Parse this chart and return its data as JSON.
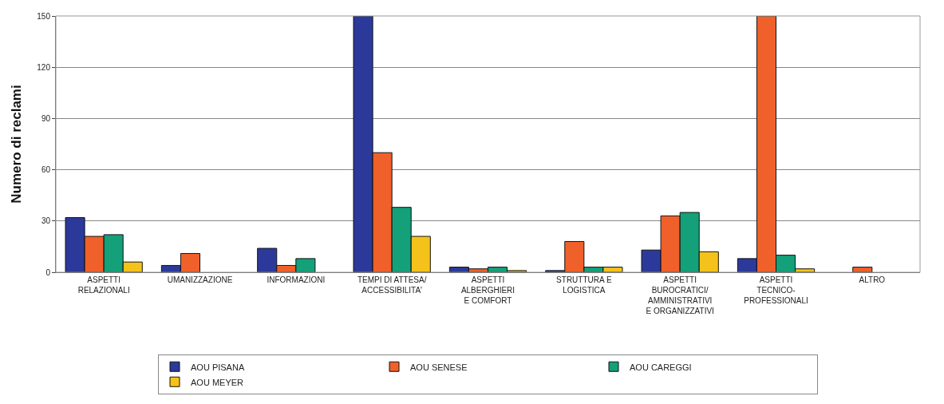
{
  "chart_data": {
    "type": "bar",
    "ylabel": "Numero di reclami",
    "categories": [
      "ASPETTI\nRELAZIONALI",
      "UMANIZZAZIONE",
      "INFORMAZIONI",
      "TEMPI DI ATTESA/\nACCESSIBILITA'",
      "ASPETTI\nALBERGHIERI\nE COMFORT",
      "STRUTTURA E\nLOGISTICA",
      "ASPETTI\nBUROCRATICI/\nAMMINISTRATIVI\nE ORGANIZZATIVI",
      "ASPETTI\nTECNICO-\nPROFESSIONALI",
      "ALTRO"
    ],
    "series": [
      {
        "name": "AOU PISANA",
        "color": "#2b3a9a",
        "values": [
          32,
          4,
          14,
          150,
          3,
          1,
          13,
          8,
          null
        ]
      },
      {
        "name": "AOU SENESE",
        "color": "#f0602a",
        "values": [
          21,
          11,
          4,
          70,
          2,
          18,
          33,
          150,
          3
        ]
      },
      {
        "name": "AOU CAREGGI",
        "color": "#14a078",
        "values": [
          22,
          null,
          8,
          38,
          3,
          3,
          35,
          10,
          null
        ]
      },
      {
        "name": "AOU MEYER",
        "color": "#f5c21b",
        "values": [
          6,
          null,
          null,
          21,
          1,
          3,
          12,
          2,
          null
        ]
      }
    ],
    "ylim": [
      0,
      150
    ],
    "yticks": [
      0,
      30,
      60,
      90,
      120,
      150
    ],
    "grid": "y",
    "legend": "bottom"
  }
}
